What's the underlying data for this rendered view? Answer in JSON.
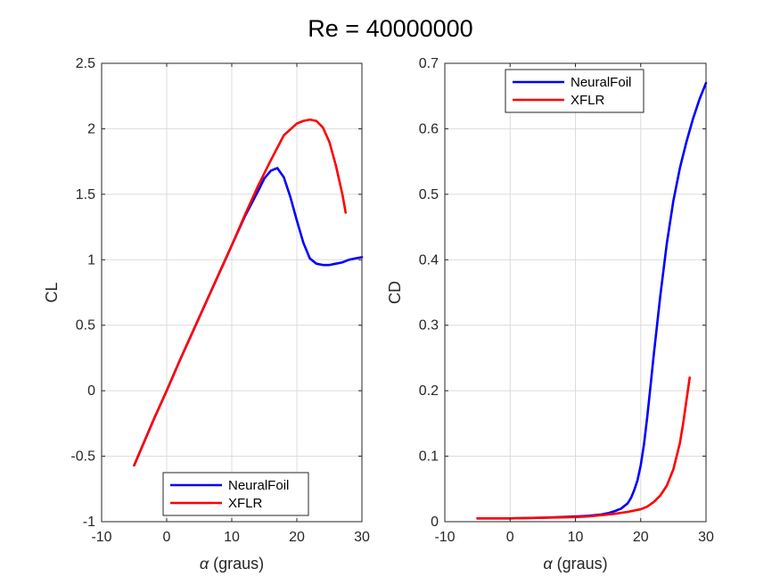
{
  "figure_title": "Re = 40000000",
  "colors": {
    "NeuralFoil": "#0000ff",
    "XFLR": "#ff0000"
  },
  "chart_data": [
    {
      "type": "line",
      "id": "cl",
      "xlabel_symbol": "α",
      "xlabel_text": " (graus)",
      "ylabel": "CL",
      "xlim": [
        -10,
        30
      ],
      "ylim": [
        -1,
        2.5
      ],
      "xticks": [
        -10,
        0,
        10,
        20,
        30
      ],
      "yticks": [
        -1,
        -0.5,
        0,
        0.5,
        1,
        1.5,
        2,
        2.5
      ],
      "ytick_labels": [
        "-1",
        "-0.5",
        "0",
        "0.5",
        "1",
        "1.5",
        "2",
        "2.5"
      ],
      "grid": true,
      "legend_position": "bottom",
      "series": [
        {
          "name": "NeuralFoil",
          "x": [
            -5,
            -2,
            0,
            2,
            4,
            6,
            8,
            10,
            12,
            14,
            15,
            16,
            17,
            18,
            19,
            20,
            21,
            22,
            23,
            24,
            25,
            26,
            27,
            28,
            29,
            30
          ],
          "y": [
            -0.57,
            -0.22,
            0.0,
            0.23,
            0.45,
            0.67,
            0.89,
            1.11,
            1.33,
            1.52,
            1.62,
            1.68,
            1.7,
            1.63,
            1.48,
            1.3,
            1.13,
            1.01,
            0.97,
            0.96,
            0.96,
            0.97,
            0.98,
            1.0,
            1.01,
            1.02
          ]
        },
        {
          "name": "XFLR",
          "x": [
            -5,
            -2,
            0,
            2,
            4,
            6,
            8,
            10,
            12,
            14,
            16,
            18,
            20,
            21,
            22,
            23,
            24,
            25,
            26,
            27,
            27.5
          ],
          "y": [
            -0.57,
            -0.22,
            0.0,
            0.23,
            0.45,
            0.67,
            0.89,
            1.11,
            1.34,
            1.56,
            1.76,
            1.95,
            2.04,
            2.06,
            2.07,
            2.06,
            2.01,
            1.9,
            1.72,
            1.5,
            1.36
          ]
        }
      ]
    },
    {
      "type": "line",
      "id": "cd",
      "xlabel_symbol": "α",
      "xlabel_text": " (graus)",
      "ylabel": "CD",
      "xlim": [
        -10,
        30
      ],
      "ylim": [
        0,
        0.7
      ],
      "xticks": [
        -10,
        0,
        10,
        20,
        30
      ],
      "yticks": [
        0,
        0.1,
        0.2,
        0.3,
        0.4,
        0.5,
        0.6,
        0.7
      ],
      "ytick_labels": [
        "0",
        "0.1",
        "0.2",
        "0.3",
        "0.4",
        "0.5",
        "0.6",
        "0.7"
      ],
      "grid": true,
      "legend_position": "top",
      "series": [
        {
          "name": "NeuralFoil",
          "x": [
            -5,
            0,
            5,
            10,
            12,
            14,
            15,
            16,
            17,
            18,
            18.5,
            19,
            19.5,
            20,
            20.5,
            21,
            21.5,
            22,
            22.5,
            23,
            24,
            25,
            26,
            27,
            28,
            29,
            30
          ],
          "y": [
            0.005,
            0.005,
            0.006,
            0.008,
            0.009,
            0.011,
            0.013,
            0.016,
            0.02,
            0.028,
            0.036,
            0.048,
            0.063,
            0.086,
            0.118,
            0.16,
            0.207,
            0.255,
            0.3,
            0.345,
            0.425,
            0.49,
            0.54,
            0.58,
            0.615,
            0.645,
            0.67
          ]
        },
        {
          "name": "XFLR",
          "x": [
            -5,
            0,
            5,
            10,
            12,
            14,
            16,
            18,
            20,
            21,
            22,
            23,
            24,
            25,
            26,
            26.5,
            27,
            27.5
          ],
          "y": [
            0.005,
            0.005,
            0.006,
            0.007,
            0.008,
            0.01,
            0.012,
            0.015,
            0.019,
            0.023,
            0.03,
            0.04,
            0.055,
            0.08,
            0.12,
            0.15,
            0.185,
            0.22
          ]
        }
      ]
    }
  ]
}
